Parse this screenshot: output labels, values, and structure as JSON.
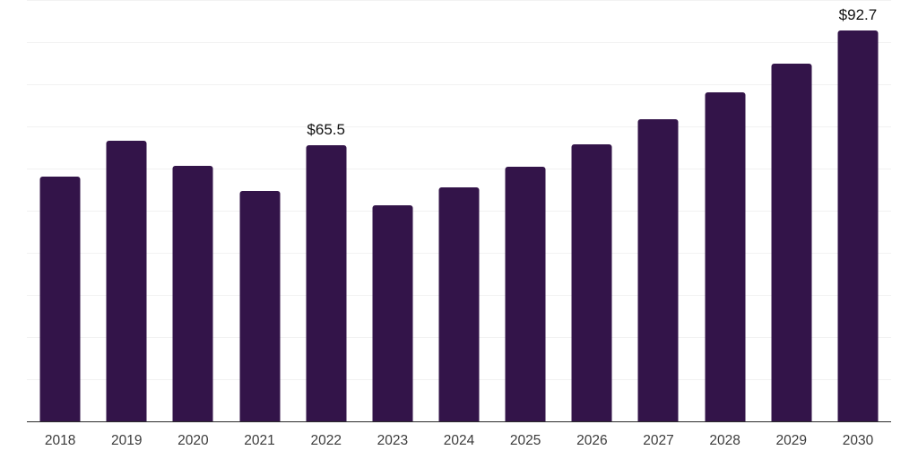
{
  "chart_data": {
    "type": "bar",
    "title": "",
    "xlabel": "",
    "ylabel": "",
    "categories": [
      "2018",
      "2019",
      "2020",
      "2021",
      "2022",
      "2023",
      "2024",
      "2025",
      "2026",
      "2027",
      "2028",
      "2029",
      "2030"
    ],
    "values": [
      58.1,
      66.6,
      60.6,
      54.7,
      65.5,
      51.3,
      55.5,
      60.5,
      65.8,
      71.6,
      78.0,
      85.0,
      92.7
    ],
    "ylim": [
      0,
      100
    ],
    "grid": "horizontal",
    "grid_step": 10,
    "legend": "none",
    "y_tick_labels_visible": false,
    "annotations": [
      {
        "category": "2022",
        "text": "$65.5"
      },
      {
        "category": "2030",
        "text": "$92.7"
      }
    ],
    "colors": {
      "bar_fill": "#331449",
      "axis_line": "#2b2b2b",
      "gridline": "#f2f2f2",
      "tick_label": "#3c3c3c",
      "data_label": "#111111",
      "background": "#ffffff"
    }
  }
}
